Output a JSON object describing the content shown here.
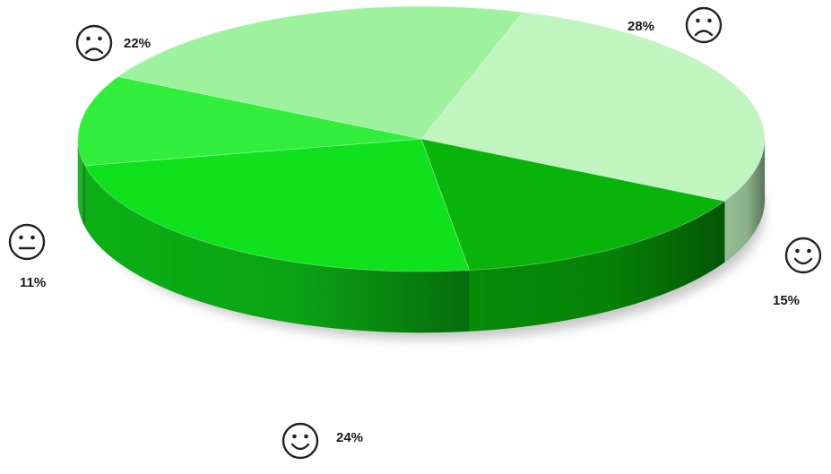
{
  "chart_data": {
    "type": "pie",
    "style": "3d",
    "title": "",
    "slices": [
      {
        "label": "28%",
        "value": 28,
        "icon": "sad-face-icon",
        "color": "#c0f5c0"
      },
      {
        "label": "15%",
        "value": 15,
        "icon": "smiley-face-icon",
        "color": "#08b30a"
      },
      {
        "label": "24%",
        "value": 24,
        "icon": "smiley-face-icon",
        "color": "#0fe11c"
      },
      {
        "label": "11%",
        "value": 11,
        "icon": "neutral-face-icon",
        "color": "#31ee3c"
      },
      {
        "label": "22%",
        "value": 22,
        "icon": "sad-face-icon",
        "color": "#9ef29e"
      }
    ],
    "legend": "none"
  }
}
